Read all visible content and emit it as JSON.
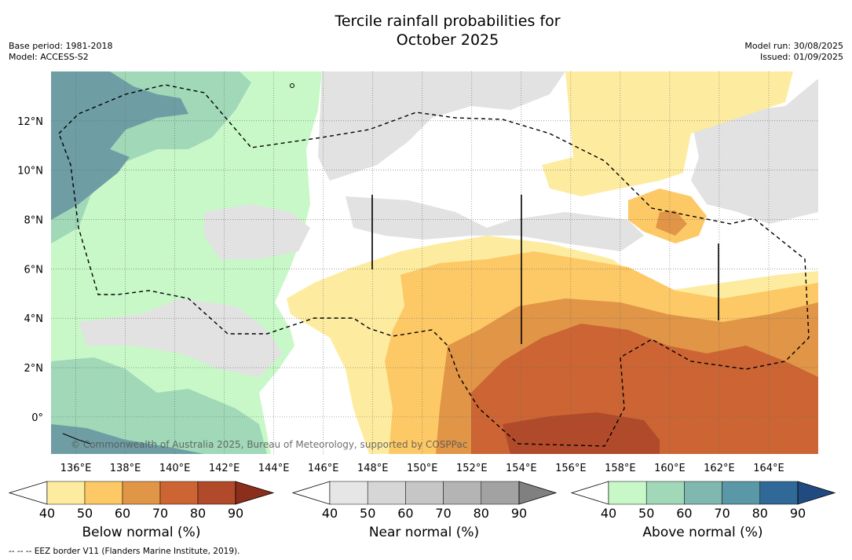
{
  "title_line1": "Tercile rainfall probabilities for",
  "title_line2": "October 2025",
  "meta_left": [
    "Base period: 1981-2018",
    "Model: ACCESS-S2"
  ],
  "meta_right": [
    "Model run: 30/08/2025",
    "Issued: 01/09/2025"
  ],
  "copyright": "© Commonwealth of Australia 2025, Bureau of Meteorology, supported by COSPPac",
  "footnote": "--  --  -- EEZ border V11 (Flanders Marine Institute, 2019).",
  "map": {
    "lon_range": [
      135,
      166
    ],
    "lat_range": [
      -1.5,
      14
    ],
    "lon_ticks": [
      136,
      138,
      140,
      142,
      144,
      146,
      148,
      150,
      152,
      154,
      156,
      158,
      160,
      162,
      164
    ],
    "lon_labels": [
      "136°E",
      "138°E",
      "140°E",
      "142°E",
      "144°E",
      "146°E",
      "148°E",
      "150°E",
      "152°E",
      "154°E",
      "156°E",
      "158°E",
      "160°E",
      "162°E",
      "164°E"
    ],
    "lat_ticks": [
      0,
      2,
      4,
      6,
      8,
      10,
      12
    ],
    "lat_labels": [
      "0°",
      "2°N",
      "4°N",
      "6°N",
      "8°N",
      "10°N",
      "12°N"
    ],
    "grid": true
  },
  "colorbars": [
    {
      "label": "Below normal (%)",
      "ticks": [
        "40",
        "50",
        "60",
        "70",
        "80",
        "90"
      ],
      "colors": [
        "#ffffff",
        "#fdeca0",
        "#fdc966",
        "#e09547",
        "#cc6533",
        "#b04a2a",
        "#8c2e1c"
      ]
    },
    {
      "label": "Near normal (%)",
      "ticks": [
        "40",
        "50",
        "60",
        "70",
        "80",
        "90"
      ],
      "colors": [
        "#ffffff",
        "#e6e6e6",
        "#d6d6d6",
        "#c6c6c6",
        "#b4b4b4",
        "#a2a2a2",
        "#808080"
      ]
    },
    {
      "label": "Above normal (%)",
      "ticks": [
        "40",
        "50",
        "60",
        "70",
        "80",
        "90"
      ],
      "colors": [
        "#ffffff",
        "#c8f8c8",
        "#a0d8b8",
        "#80b8b0",
        "#5a98a8",
        "#306898",
        "#204a80"
      ]
    }
  ]
}
